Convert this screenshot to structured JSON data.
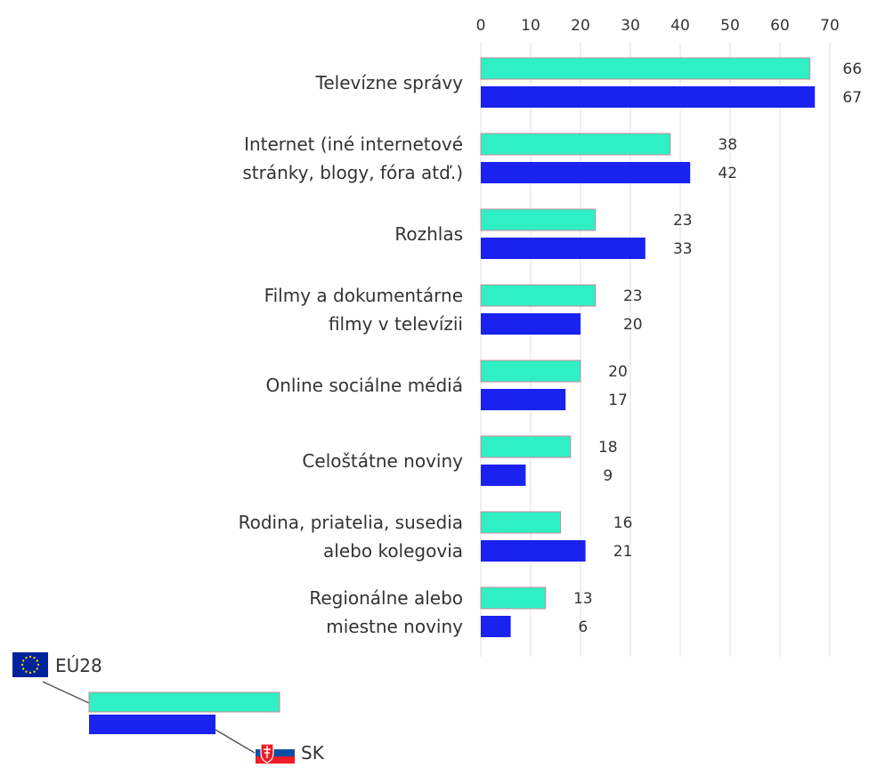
{
  "chart_data": {
    "type": "bar",
    "orientation": "horizontal",
    "categories": [
      "Televízne správy",
      "Internet (iné internetové stránky, blogy, fóra atď.)",
      "Rozhlas",
      "Filmy a dokumentárne filmy v televízii",
      "Online sociálne médiá",
      "Celoštátne noviny",
      "Rodina, priatelia, susedia alebo kolegovia",
      "Regionálne alebo miestne noviny"
    ],
    "category_lines": [
      [
        "Televízne správy"
      ],
      [
        "Internet (iné internetové",
        "stránky, blogy, fóra atď.)"
      ],
      [
        "Rozhlas"
      ],
      [
        "Filmy a dokumentárne",
        "filmy v televízii"
      ],
      [
        "Online sociálne médiá"
      ],
      [
        "Celoštátne noviny"
      ],
      [
        "Rodina, priatelia, susedia",
        "alebo kolegovia"
      ],
      [
        "Regionálne alebo",
        "miestne noviny"
      ]
    ],
    "series": [
      {
        "name": "EÚ28",
        "color": "#2ef0c4",
        "values": [
          66,
          38,
          23,
          23,
          20,
          18,
          16,
          13
        ]
      },
      {
        "name": "SK",
        "color": "#1a22f0",
        "values": [
          67,
          42,
          33,
          20,
          17,
          9,
          21,
          6
        ]
      }
    ],
    "x_ticks": [
      0,
      10,
      20,
      30,
      40,
      50,
      60,
      70
    ],
    "xlim": [
      0,
      70
    ],
    "grid": true,
    "axis_position": "top",
    "legend_position": "bottom-left"
  }
}
